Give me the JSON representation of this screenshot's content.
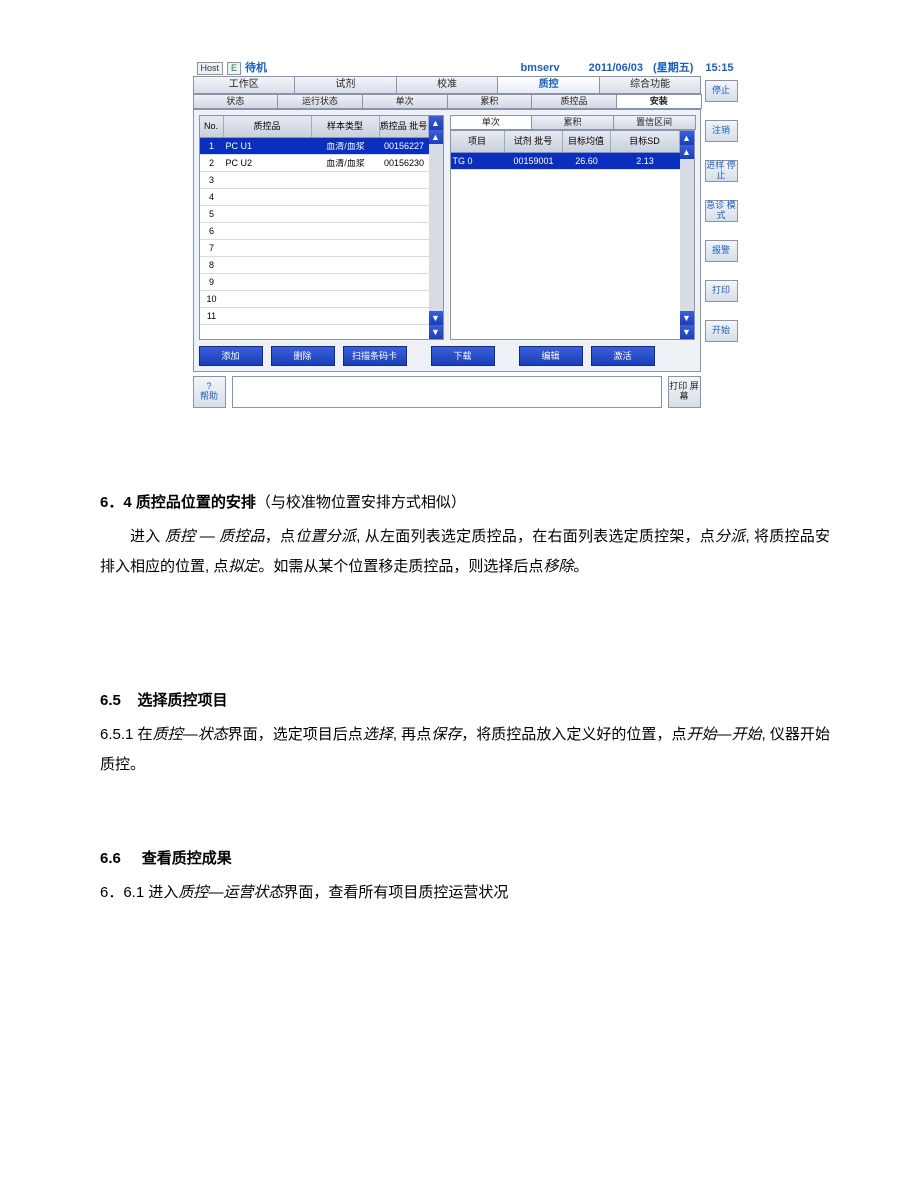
{
  "topbar": {
    "host": "Host",
    "e": "E",
    "standby": "待机",
    "user": "bmserv",
    "date": "2011/06/03",
    "day": "(星期五)",
    "time": "15:15"
  },
  "tabs1": [
    "工作区",
    "试剂",
    "校准",
    "质控",
    "综合功能"
  ],
  "tabs1_active": 3,
  "tabs2": [
    "状态",
    "运行状态",
    "单次",
    "累积",
    "质控品",
    "安装"
  ],
  "tabs2_active": 5,
  "tabs3": [
    "单次",
    "累积",
    "置信区间"
  ],
  "tabs3_active": 0,
  "leftGrid": {
    "cols": [
      "No.",
      "质控品",
      "样本类型",
      "质控品\n批号"
    ],
    "rows": [
      {
        "no": "1",
        "name": "PC U1",
        "type": "血清/血浆",
        "lot": "00156227",
        "selected": true
      },
      {
        "no": "2",
        "name": "PC U2",
        "type": "血清/血浆",
        "lot": "00156230",
        "selected": false
      },
      {
        "no": "3",
        "name": "",
        "type": "",
        "lot": "",
        "selected": false
      },
      {
        "no": "4",
        "name": "",
        "type": "",
        "lot": "",
        "selected": false
      },
      {
        "no": "5",
        "name": "",
        "type": "",
        "lot": "",
        "selected": false
      },
      {
        "no": "6",
        "name": "",
        "type": "",
        "lot": "",
        "selected": false
      },
      {
        "no": "7",
        "name": "",
        "type": "",
        "lot": "",
        "selected": false
      },
      {
        "no": "8",
        "name": "",
        "type": "",
        "lot": "",
        "selected": false
      },
      {
        "no": "9",
        "name": "",
        "type": "",
        "lot": "",
        "selected": false
      },
      {
        "no": "10",
        "name": "",
        "type": "",
        "lot": "",
        "selected": false
      },
      {
        "no": "11",
        "name": "",
        "type": "",
        "lot": "",
        "selected": false
      }
    ]
  },
  "rightGrid": {
    "cols": [
      "项目",
      "试剂\n批号",
      "目标均值",
      "目标SD"
    ],
    "rows": [
      {
        "item": "TG 0",
        "lot": "00159001",
        "mean": "26.60",
        "sd": "2.13",
        "selected": true
      }
    ]
  },
  "actions": {
    "add": "添加",
    "del": "删除",
    "scan": "扫描条码卡",
    "download": "下载",
    "edit": "编辑",
    "activate": "激活"
  },
  "footer": {
    "help_q": "?",
    "help": "帮助",
    "print_screen": "打印\n屏幕"
  },
  "side": {
    "stop": "停止",
    "logout": "注销",
    "sample_stop": "进样\n停止",
    "emerg": "急诊\n模式",
    "alarm": "报警",
    "print": "打印",
    "start": "开始"
  },
  "doc": {
    "s64_num": "6．4 ",
    "s64_title": "质控品位置的安排",
    "s64_paren": "（与校准物位置安排方式相似）",
    "s64_p1_a": "进入 ",
    "s64_p1_b": "质控 — 质控品",
    "s64_p1_c": "，点",
    "s64_p1_d": "位置分派",
    "s64_p1_e": ", 从左面列表选定质控品，在右面列表选定质控架，点",
    "s64_p1_f": "分派",
    "s64_p1_g": ", 将质控品安排入相应的位置, 点",
    "s64_p1_h": "拟定",
    "s64_p1_i": "。如需从某个位置移走质控品，则选择后点",
    "s64_p1_j": "移除",
    "s64_p1_k": "。",
    "s65_num": "6.5",
    "s65_title": "选择质控项目",
    "s651_num": "6.5.1",
    "s651_a": "   在",
    "s651_b": "质控—状态",
    "s651_c": "界面，选定项目后点",
    "s651_d": "选择",
    "s651_e": ", 再点",
    "s651_f": "保存",
    "s651_g": "，将质控品放入定义好的位置，点",
    "s651_h": "开始—开始",
    "s651_i": ", 仪器开始质控。",
    "s66_num": "6.6",
    "s66_title": "查看质控成果",
    "s661_num": "6．6.1",
    "s661_a": "   进入",
    "s661_b": "质控—运营状态",
    "s661_c": "界面，查看所有项目质控运营状况"
  }
}
